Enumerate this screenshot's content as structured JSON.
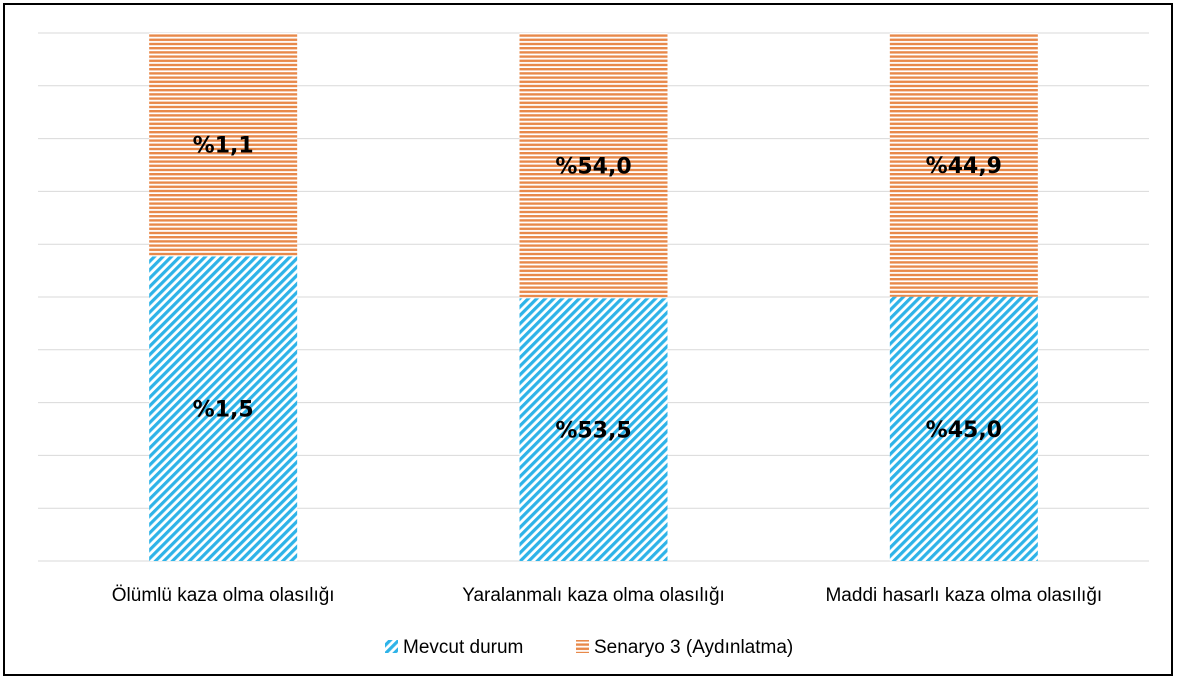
{
  "chart_data": {
    "type": "bar",
    "stacked": true,
    "normalized": true,
    "categories": [
      "Ölümlü kaza olma olasılığı",
      "Yaralanmalı kaza olma olasılığı",
      "Maddi hasarlı kaza olma olasılığı"
    ],
    "series": [
      {
        "name": "Mevcut durum",
        "values": [
          1.5,
          53.5,
          45.0
        ],
        "labels": [
          "%1,5",
          "%53,5",
          "%45,0"
        ],
        "color": "#2EB3E8",
        "pattern": "diagonal-stripes"
      },
      {
        "name": "Senaryo 3 (Aydınlatma)",
        "values": [
          1.1,
          54.0,
          44.9
        ],
        "labels": [
          "%1,1",
          "%54,0",
          "%44,9"
        ],
        "color": "#E8894A",
        "pattern": "horizontal-stripes"
      }
    ],
    "title": "",
    "xlabel": "",
    "ylabel": "",
    "ylim": [
      0,
      1
    ],
    "grid": true,
    "legend_position": "bottom"
  }
}
